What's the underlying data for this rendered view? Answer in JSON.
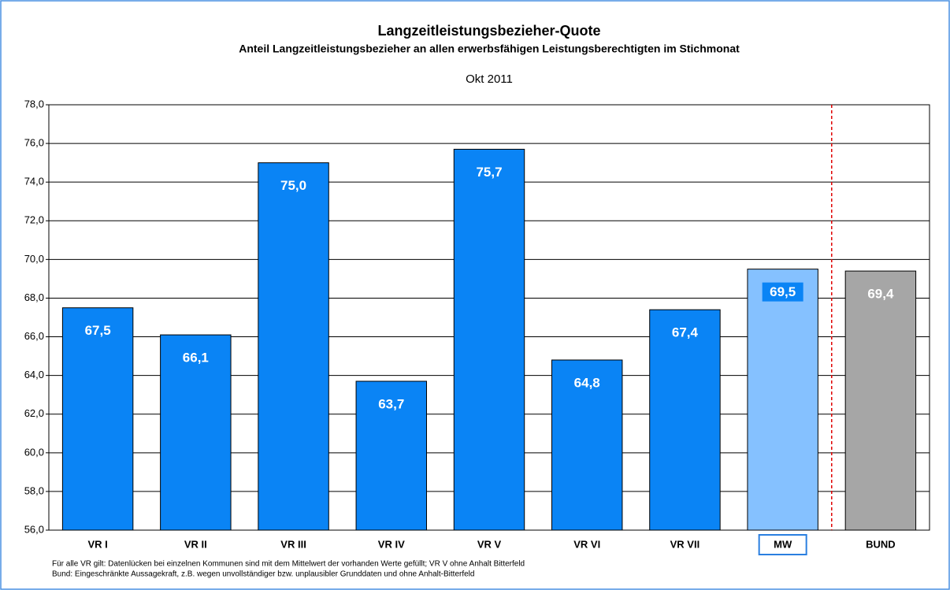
{
  "chart_data": {
    "type": "bar",
    "title": "Langzeitleistungsbezieher-Quote",
    "subtitle": "Anteil Langzeitleistungsbezieher an allen erwerbsfähigen Leistungsberechtigten im Stichmonat",
    "period": "Okt 2011",
    "categories": [
      "VR I",
      "VR II",
      "VR III",
      "VR IV",
      "VR V",
      "VR VI",
      "VR VII",
      "MW",
      "BUND"
    ],
    "values": [
      67.5,
      66.1,
      75.0,
      63.7,
      75.7,
      64.8,
      67.4,
      69.5,
      69.4
    ],
    "value_labels": [
      "67,5",
      "66,1",
      "75,0",
      "63,7",
      "75,7",
      "64,8",
      "67,4",
      "69,5",
      "69,4"
    ],
    "colors": [
      "#0a84f5",
      "#0a84f5",
      "#0a84f5",
      "#0a84f5",
      "#0a84f5",
      "#0a84f5",
      "#0a84f5",
      "#85c1ff",
      "#a6a6a6"
    ],
    "ylim": [
      56,
      78
    ],
    "yticks": [
      {
        "value": 56,
        "label": "56,0"
      },
      {
        "value": 58,
        "label": "58,0"
      },
      {
        "value": 60,
        "label": "60,0"
      },
      {
        "value": 62,
        "label": "62,0"
      },
      {
        "value": 64,
        "label": "64,0"
      },
      {
        "value": 66,
        "label": "66,0"
      },
      {
        "value": 68,
        "label": "68,0"
      },
      {
        "value": 70,
        "label": "70,0"
      },
      {
        "value": 72,
        "label": "72,0"
      },
      {
        "value": 74,
        "label": "74,0"
      },
      {
        "value": 76,
        "label": "76,0"
      },
      {
        "value": 78,
        "label": "78,0"
      }
    ],
    "grid": true,
    "notes": [
      "Für alle VR gilt: Datenlücken bei einzelnen Kommunen sind mit dem Mittelwert der vorhanden Werte gefüllt; VR V ohne Anhalt Bitterfeld",
      "Bund: Eingeschränkte Aussagekraft, z.B. wegen unvollständiger bzw. unplausibler Grunddaten und ohne Anhalt-Bitterfeld"
    ]
  }
}
